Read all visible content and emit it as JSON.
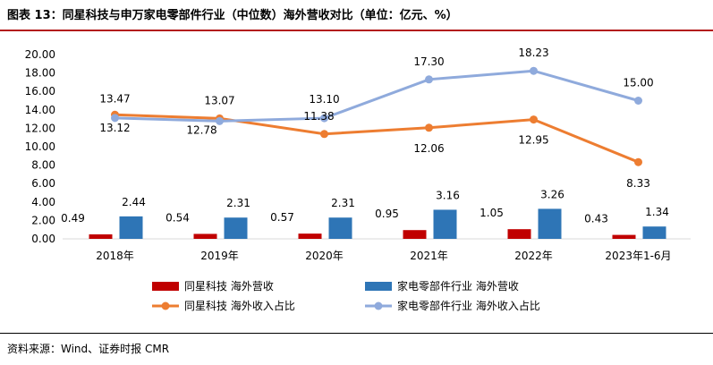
{
  "header": {
    "title": "图表 13：同星科技与申万家电零部件行业（中位数）海外营收对比（单位：亿元、%）"
  },
  "footer": {
    "source": "资料来源：Wind、证券时报 CMR"
  },
  "colors": {
    "bar_tongxing": "#c00000",
    "bar_industry": "#2e75b6",
    "line_tongxing": "#ed7d31",
    "line_industry": "#8faadc",
    "axis": "#595959",
    "grid": "#d9d9d9"
  },
  "chart_data": {
    "type": "bar+line",
    "title": "同星科技与申万家电零部件行业（中位数）海外营收对比（单位：亿元、%）",
    "categories": [
      "2018年",
      "2019年",
      "2020年",
      "2021年",
      "2022年",
      "2023年1-6月"
    ],
    "ylim": [
      0,
      20
    ],
    "yticks": [
      "0.00",
      "2.00",
      "4.00",
      "6.00",
      "8.00",
      "10.00",
      "12.00",
      "14.00",
      "16.00",
      "18.00",
      "20.00"
    ],
    "series": [
      {
        "name": "同星科技 海外营收",
        "kind": "bar",
        "values": [
          0.49,
          0.54,
          0.57,
          0.95,
          1.05,
          0.43
        ],
        "labels": [
          "0.49",
          "0.54",
          "0.57",
          "0.95",
          "1.05",
          "0.43"
        ]
      },
      {
        "name": "家电零部件行业 海外营收",
        "kind": "bar",
        "values": [
          2.44,
          2.31,
          2.31,
          3.16,
          3.26,
          1.34
        ],
        "labels": [
          "2.44",
          "2.31",
          "2.31",
          "3.16",
          "3.26",
          "1.34"
        ]
      },
      {
        "name": "同星科技 海外收入占比",
        "kind": "line",
        "values": [
          13.47,
          13.07,
          11.38,
          12.06,
          12.95,
          8.33
        ],
        "labels": [
          "13.47",
          "13.07",
          "11.38",
          "12.06",
          "12.95",
          "8.33"
        ]
      },
      {
        "name": "家电零部件行业 海外收入占比",
        "kind": "line",
        "values": [
          13.12,
          12.78,
          13.1,
          17.3,
          18.23,
          15.0
        ],
        "labels": [
          "13.12",
          "12.78",
          "13.10",
          "17.30",
          "18.23",
          "15.00"
        ]
      }
    ],
    "legend_position": "bottom"
  }
}
